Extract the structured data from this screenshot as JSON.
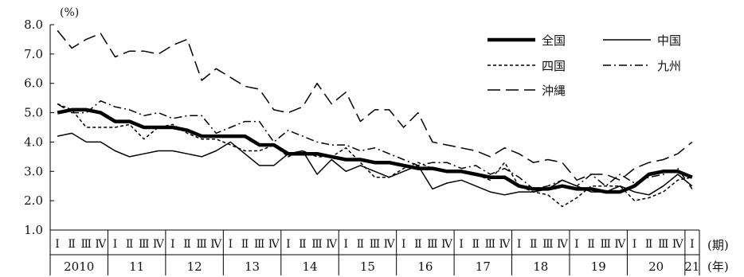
{
  "chart_data": {
    "type": "line",
    "unit_label": "(%)",
    "x_axis_label_quarter": "(期)",
    "x_axis_label_year": "(年)",
    "ylim": [
      1.0,
      8.0
    ],
    "yticks": [
      "8.0",
      "7.0",
      "6.0",
      "5.0",
      "4.0",
      "3.0",
      "2.0",
      "1.0"
    ],
    "yticks_values": [
      8,
      7,
      6,
      5,
      4,
      3,
      2,
      1
    ],
    "quarter_labels": [
      "Ⅰ",
      "Ⅱ",
      "Ⅲ",
      "Ⅳ"
    ],
    "years": [
      "2010",
      "11",
      "12",
      "13",
      "14",
      "15",
      "16",
      "17",
      "18",
      "19",
      "20",
      "21"
    ],
    "quarters_per_year": [
      4,
      4,
      4,
      4,
      4,
      4,
      4,
      4,
      4,
      4,
      4,
      1
    ],
    "grid": false,
    "legend_position": "top-right",
    "series": [
      {
        "name": "全国",
        "color": "#000000",
        "style": "thick-solid",
        "values": [
          5.0,
          5.1,
          5.1,
          5.0,
          4.7,
          4.7,
          4.5,
          4.5,
          4.5,
          4.4,
          4.2,
          4.2,
          4.2,
          4.2,
          3.9,
          3.9,
          3.6,
          3.6,
          3.6,
          3.5,
          3.4,
          3.4,
          3.3,
          3.3,
          3.2,
          3.1,
          3.1,
          3.0,
          3.0,
          2.9,
          2.8,
          2.8,
          2.5,
          2.4,
          2.4,
          2.5,
          2.4,
          2.4,
          2.3,
          2.3,
          2.5,
          2.9,
          3.0,
          3.0,
          2.8
        ]
      },
      {
        "name": "中国",
        "color": "#000000",
        "style": "solid",
        "values": [
          4.2,
          4.3,
          4.0,
          4.0,
          3.7,
          3.5,
          3.6,
          3.7,
          3.7,
          3.6,
          3.5,
          3.7,
          4.0,
          3.6,
          3.2,
          3.2,
          3.6,
          3.7,
          2.9,
          3.4,
          3.0,
          3.2,
          3.0,
          2.8,
          3.0,
          3.2,
          2.4,
          2.6,
          2.7,
          2.5,
          2.3,
          2.2,
          2.3,
          2.3,
          2.4,
          2.7,
          2.5,
          2.3,
          2.3,
          2.5,
          2.3,
          2.2,
          2.5,
          2.9,
          2.5
        ]
      },
      {
        "name": "四国",
        "color": "#000000",
        "style": "dotted",
        "values": [
          5.3,
          5.1,
          4.5,
          4.5,
          4.5,
          4.6,
          4.1,
          4.5,
          4.6,
          4.3,
          4.1,
          4.1,
          3.9,
          3.7,
          3.7,
          3.9,
          3.5,
          3.7,
          3.5,
          3.5,
          3.8,
          3.3,
          2.8,
          2.8,
          3.1,
          3.3,
          3.1,
          3.0,
          3.0,
          2.9,
          2.7,
          3.3,
          2.5,
          2.3,
          2.2,
          1.8,
          2.1,
          2.5,
          2.5,
          2.5,
          2.0,
          2.1,
          2.3,
          2.7,
          2.8
        ]
      },
      {
        "name": "九州",
        "color": "#000000",
        "style": "dash-dot",
        "values": [
          5.3,
          5.0,
          5.0,
          5.4,
          5.2,
          5.1,
          4.9,
          5.0,
          4.8,
          4.9,
          4.9,
          4.3,
          4.5,
          4.7,
          4.7,
          4.0,
          4.4,
          4.2,
          4.0,
          3.9,
          3.9,
          3.7,
          3.8,
          3.6,
          3.4,
          3.2,
          3.3,
          3.3,
          3.1,
          3.2,
          2.9,
          3.1,
          2.8,
          2.4,
          2.5,
          2.7,
          2.5,
          2.9,
          2.5,
          2.9,
          2.6,
          2.8,
          2.9,
          3.1,
          2.4
        ]
      },
      {
        "name": "沖縄",
        "color": "#000000",
        "style": "long-dash",
        "values": [
          7.8,
          7.2,
          7.5,
          7.7,
          6.9,
          7.1,
          7.1,
          7.0,
          7.3,
          7.5,
          6.1,
          6.5,
          6.2,
          5.9,
          5.8,
          5.1,
          5.0,
          5.2,
          6.0,
          5.3,
          5.7,
          4.7,
          5.1,
          5.1,
          4.5,
          5.0,
          4.0,
          3.9,
          3.8,
          3.7,
          3.5,
          3.8,
          3.6,
          3.3,
          3.4,
          3.3,
          2.7,
          2.9,
          2.9,
          2.7,
          3.1,
          3.3,
          3.4,
          3.6,
          4.0
        ]
      }
    ]
  }
}
